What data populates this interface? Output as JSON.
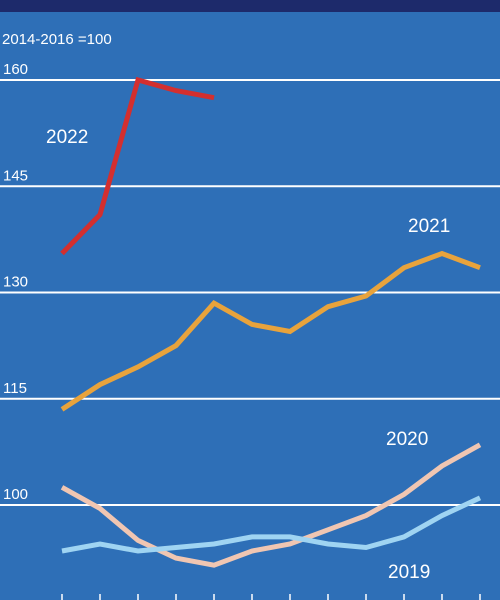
{
  "colors": {
    "background": "#2e6fb7",
    "top_bar": "#1d2a6b",
    "grid": "#ffffff",
    "text": "#ffffff"
  },
  "chart_data": {
    "type": "line",
    "unit_label": "2014-2016 =100",
    "ylim": [
      91.5,
      164
    ],
    "yticks": [
      100,
      115,
      130,
      145,
      160
    ],
    "ytick_labels": [
      "100",
      "115",
      "130",
      "145",
      "160"
    ],
    "x_points": 12,
    "grid": true,
    "series": [
      {
        "name": "2022",
        "color": "#d32f2f",
        "width": 5,
        "values": [
          135.5,
          141,
          160,
          158.5,
          157.5
        ]
      },
      {
        "name": "2021",
        "color": "#e8a33c",
        "width": 5,
        "values": [
          113.5,
          117,
          119.5,
          122.5,
          128.5,
          125.5,
          124.5,
          128,
          129.5,
          133.5,
          135.5,
          133.5
        ]
      },
      {
        "name": "2020",
        "color": "#f0c6b2",
        "width": 5,
        "values": [
          102.5,
          99.5,
          95,
          92.5,
          91.5,
          93.5,
          94.5,
          96.5,
          98.5,
          101.5,
          105.5,
          108.5
        ]
      },
      {
        "name": "2019",
        "color": "#9fd4f2",
        "width": 5,
        "values": [
          93.5,
          94.5,
          93.5,
          94,
          94.5,
          95.5,
          95.5,
          94.5,
          94,
          95.5,
          98.5,
          101
        ]
      }
    ]
  }
}
